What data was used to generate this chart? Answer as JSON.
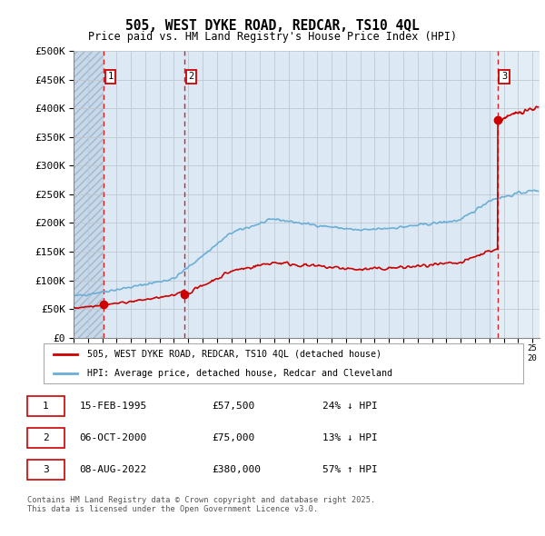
{
  "title_line1": "505, WEST DYKE ROAD, REDCAR, TS10 4QL",
  "title_line2": "Price paid vs. HM Land Registry's House Price Index (HPI)",
  "ylim": [
    0,
    500000
  ],
  "yticks": [
    0,
    50000,
    100000,
    150000,
    200000,
    250000,
    300000,
    350000,
    400000,
    450000,
    500000
  ],
  "ytick_labels": [
    "£0",
    "£50K",
    "£100K",
    "£150K",
    "£200K",
    "£250K",
    "£300K",
    "£350K",
    "£400K",
    "£450K",
    "£500K"
  ],
  "xlim_start": 1993.0,
  "xlim_end": 2025.5,
  "sale_dates": [
    1995.12,
    2000.76,
    2022.59
  ],
  "sale_prices": [
    57500,
    75000,
    380000
  ],
  "hpi_line_color": "#6baed6",
  "sale_line_color": "#cc0000",
  "sale_dot_color": "#cc0000",
  "legend_label1": "505, WEST DYKE ROAD, REDCAR, TS10 4QL (detached house)",
  "legend_label2": "HPI: Average price, detached house, Redcar and Cleveland",
  "table_rows": [
    [
      "1",
      "15-FEB-1995",
      "£57,500",
      "24% ↓ HPI"
    ],
    [
      "2",
      "06-OCT-2000",
      "£75,000",
      "13% ↓ HPI"
    ],
    [
      "3",
      "08-AUG-2022",
      "£380,000",
      "57% ↑ HPI"
    ]
  ],
  "footer_text": "Contains HM Land Registry data © Crown copyright and database right 2025.\nThis data is licensed under the Open Government Licence v3.0.",
  "plot_bg_color": "#dce9f5",
  "hatch_bg_color": "#c8d8e8",
  "grid_color": "#c0c8d0",
  "dashed_line_color": "#cc0000"
}
